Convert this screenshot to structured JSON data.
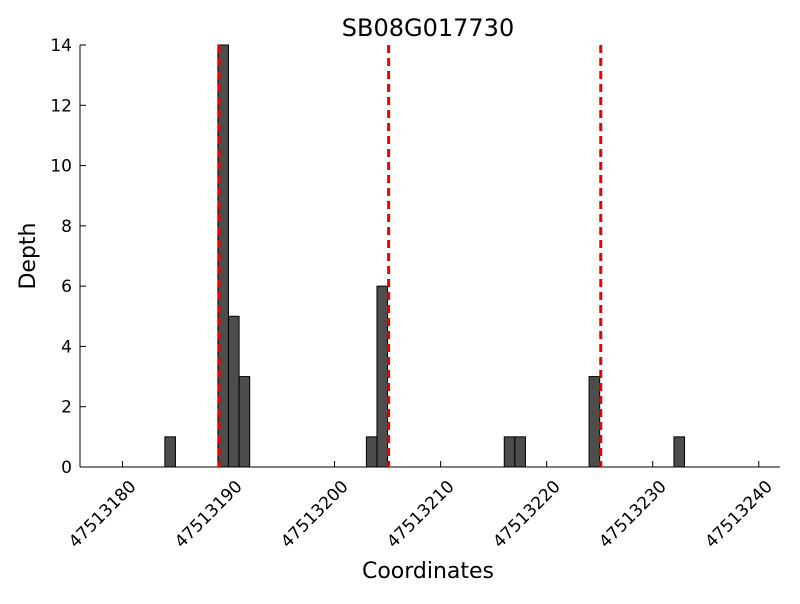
{
  "chart_data": {
    "type": "bar",
    "title": "SB08G017730",
    "xlabel": "Coordinates",
    "ylabel": "Depth",
    "xlim": [
      47513176,
      47513242
    ],
    "ylim": [
      0,
      14
    ],
    "xticks": [
      47513180,
      47513190,
      47513200,
      47513210,
      47513220,
      47513230,
      47513240
    ],
    "yticks": [
      0,
      2,
      4,
      6,
      8,
      10,
      12,
      14
    ],
    "grid": false,
    "bar_color": "#4d4d4d",
    "bars": [
      {
        "x": 47513184,
        "value": 1
      },
      {
        "x": 47513189,
        "value": 14
      },
      {
        "x": 47513190,
        "value": 5
      },
      {
        "x": 47513191,
        "value": 3
      },
      {
        "x": 47513203,
        "value": 1
      },
      {
        "x": 47513204,
        "value": 6
      },
      {
        "x": 47513216,
        "value": 1
      },
      {
        "x": 47513217,
        "value": 1
      },
      {
        "x": 47513224,
        "value": 3
      },
      {
        "x": 47513232,
        "value": 1
      }
    ],
    "reference_lines": {
      "color": "#ee0000",
      "style": "dashed",
      "x": [
        47513189.1,
        47513205.1,
        47513225.1
      ]
    }
  }
}
